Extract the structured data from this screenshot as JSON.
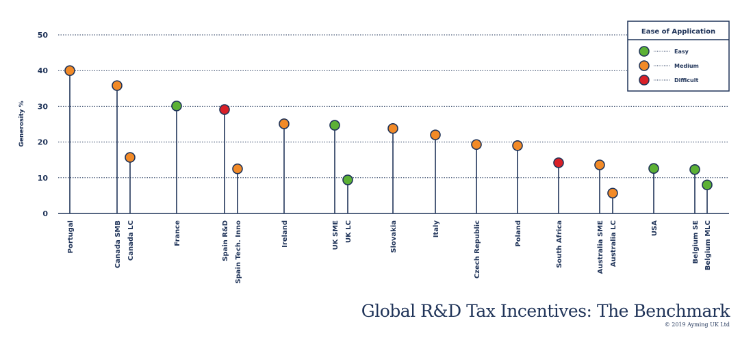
{
  "chart_data": {
    "type": "lollipop",
    "title": "Global R&D Tax Incentives: The Benchmark",
    "copyright": "© 2019 Ayming UK Ltd",
    "ylabel": "Generosity %",
    "xlabel": "",
    "ylim": [
      0,
      50
    ],
    "yticks": [
      0,
      10,
      20,
      30,
      40,
      50
    ],
    "grid": true,
    "legend": {
      "title": "Ease of Application",
      "placement": "top-right",
      "entries": [
        {
          "label": "Easy",
          "color": "#5cb135"
        },
        {
          "label": "Medium",
          "color": "#f28a27"
        },
        {
          "label": "Difficult",
          "color": "#d92027"
        }
      ]
    },
    "points": [
      {
        "label": "Portugal",
        "value": 40,
        "ease": "Medium"
      },
      {
        "label": "Canada SMB",
        "value": 35.8,
        "ease": "Medium"
      },
      {
        "label": "Canada LC",
        "value": 15.7,
        "ease": "Medium"
      },
      {
        "label": "France",
        "value": 30.1,
        "ease": "Easy"
      },
      {
        "label": "Spain R&D",
        "value": 29.1,
        "ease": "Difficult"
      },
      {
        "label": "Spain Tech. Inno",
        "value": 12.5,
        "ease": "Medium"
      },
      {
        "label": "Ireland",
        "value": 25.1,
        "ease": "Medium"
      },
      {
        "label": "UK SME",
        "value": 24.7,
        "ease": "Easy"
      },
      {
        "label": "UK LC",
        "value": 9.4,
        "ease": "Easy"
      },
      {
        "label": "Slovakia",
        "value": 23.8,
        "ease": "Medium"
      },
      {
        "label": "Italy",
        "value": 22.0,
        "ease": "Medium"
      },
      {
        "label": "Czech Republic",
        "value": 19.3,
        "ease": "Medium"
      },
      {
        "label": "Poland",
        "value": 19.0,
        "ease": "Medium"
      },
      {
        "label": "South  Africa",
        "value": 14.2,
        "ease": "Difficult"
      },
      {
        "label": "Australia SME",
        "value": 13.6,
        "ease": "Medium"
      },
      {
        "label": "Australia LC",
        "value": 5.7,
        "ease": "Medium"
      },
      {
        "label": "USA",
        "value": 12.6,
        "ease": "Easy"
      },
      {
        "label": "Belgium SE",
        "value": 12.3,
        "ease": "Easy"
      },
      {
        "label": "Belgium MLC",
        "value": 8.0,
        "ease": "Easy"
      }
    ],
    "colors": {
      "axis": "#1f3358",
      "grid": "#1f3358"
    }
  }
}
